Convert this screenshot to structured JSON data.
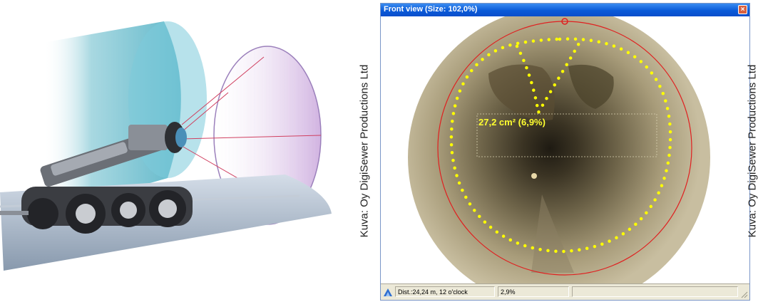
{
  "window": {
    "title": "Front view (Size: 102,0%)",
    "close_symbol": "×"
  },
  "measurement": {
    "area_label": "27,2 cm² (6,9%)"
  },
  "statusbar": {
    "distance": "Dist.:24,24 m, 12 o'clock",
    "percent": "2,9%"
  },
  "credits": {
    "left": "Kuva: Oy DigiSewer Productions Ltd",
    "right": "Kuva: Oy DigiSewer Productions Ltd"
  },
  "icons": {
    "statusbar": "pipe-robot-icon",
    "close": "close-icon",
    "grip": "resize-grip-icon"
  },
  "colors": {
    "titlebar": "#0a5ad8",
    "fit_circle": "#e02020",
    "defect_outline": "#ffff00",
    "label_text": "#ffff30"
  }
}
